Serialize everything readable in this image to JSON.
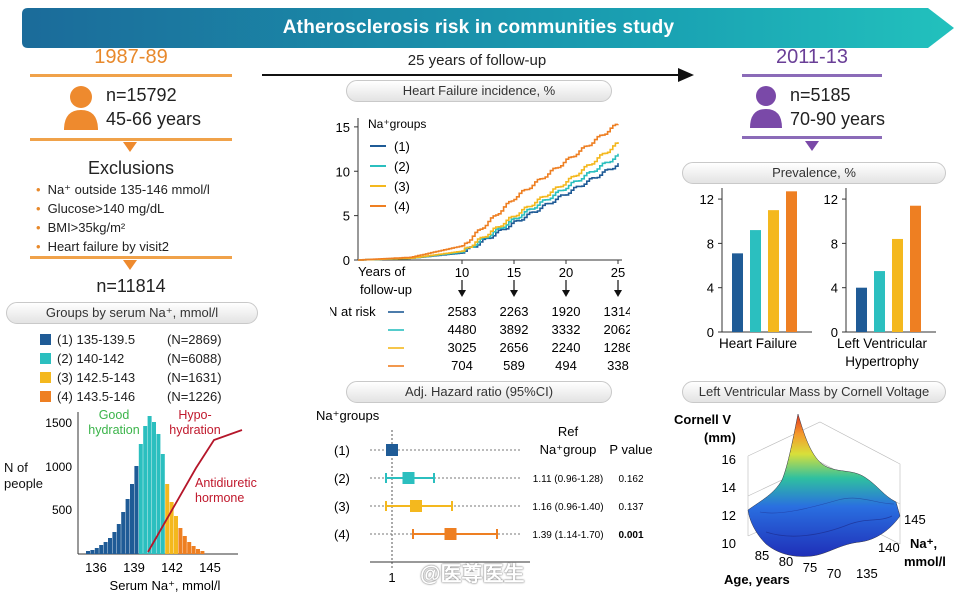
{
  "banner": {
    "title": "Atherosclerosis risk in communities study"
  },
  "baseline": {
    "period": "1987-89",
    "n": "n=15792",
    "ages": "45-66 years"
  },
  "followup": {
    "label": "25 years of follow-up"
  },
  "followup_visit": {
    "period": "2011-13",
    "n": "n=5185",
    "ages": "70-90 years"
  },
  "exclusions": {
    "title": "Exclusions",
    "items": [
      "Na⁺ outside 135-146 mmol/l",
      "Glucose>140 mg/dL",
      "BMI>35kg/m²",
      "Heart failure by visit2"
    ],
    "n_after": "n=11814"
  },
  "groups": {
    "title": "Groups by serum Na⁺, mmol/l",
    "rows": [
      {
        "label": "(1) 135-139.5",
        "n": "(N=2869)",
        "color": "#1f5b96"
      },
      {
        "label": "(2) 140-142",
        "n": "(N=6088)",
        "color": "#2bbfbf"
      },
      {
        "label": "(3) 142.5-143",
        "n": "(N=1631)",
        "color": "#f4b81e"
      },
      {
        "label": "(4) 143.5-146",
        "n": "(N=1226)",
        "color": "#ee7f22"
      }
    ]
  },
  "histogram": {
    "ylabel": "N of people",
    "xlabel": "Serum Na⁺, mmol/l",
    "good": "Good hydration",
    "hypo": "Hypo-hydration",
    "adh": "Antidiuretic hormone",
    "yticks": [
      "1500",
      "1000",
      "500"
    ],
    "xticks": [
      "136",
      "139",
      "142",
      "145"
    ]
  },
  "hf_chart": {
    "title": "Heart Failure incidence, %",
    "legend_title": "Na⁺groups",
    "legend": [
      "(1)",
      "(2)",
      "(3)",
      "(4)"
    ],
    "xlabel": "Years of follow-up",
    "risk_label": "N at risk",
    "chart_data": {
      "type": "line",
      "ylim": [
        0,
        16
      ],
      "yticks": [
        "15",
        "10",
        "5",
        "0"
      ],
      "xticks": [
        "10",
        "15",
        "20",
        "25"
      ],
      "x": [
        0,
        5,
        10,
        15,
        20,
        25
      ],
      "series": [
        {
          "name": "(1)",
          "values": [
            0,
            0.2,
            0.8,
            4.2,
            7.5,
            10.8
          ],
          "color": "#1f5b96"
        },
        {
          "name": "(2)",
          "values": [
            0,
            0.2,
            0.9,
            4.6,
            8.2,
            11.8
          ],
          "color": "#2bbfbf"
        },
        {
          "name": "(3)",
          "values": [
            0,
            0.2,
            1.0,
            5.0,
            8.8,
            13.2
          ],
          "color": "#f4b81e"
        },
        {
          "name": "(4)",
          "values": [
            0,
            0.3,
            1.6,
            7.0,
            11.2,
            15.4
          ],
          "color": "#ee7f22"
        }
      ]
    },
    "at_risk": [
      [
        "2583",
        "2263",
        "1920",
        "1314"
      ],
      [
        "4480",
        "3892",
        "3332",
        "2062"
      ],
      [
        "3025",
        "2656",
        "2240",
        "1286"
      ],
      [
        "704",
        "589",
        "494",
        "338"
      ]
    ]
  },
  "hr_chart": {
    "title": "Adj. Hazard ratio (95%CI)",
    "legend_title": "Na⁺groups",
    "ref_label": "Ref",
    "col1_header": "Na⁺group",
    "col2_header": "P value",
    "xtick": "1",
    "chart_data": {
      "type": "forest",
      "rows": [
        {
          "group": "(1)",
          "hr": 1.0,
          "lo": 1.0,
          "hi": 1.0,
          "ci_text": "",
          "p": "",
          "color": "#1f5b96"
        },
        {
          "group": "(2)",
          "hr": 1.11,
          "lo": 0.96,
          "hi": 1.28,
          "ci_text": "1.11 (0.96-1.28)",
          "p": "0.162",
          "color": "#2bbfbf"
        },
        {
          "group": "(3)",
          "hr": 1.16,
          "lo": 0.96,
          "hi": 1.4,
          "ci_text": "1.16 (0.96-1.40)",
          "p": "0.137",
          "color": "#f4b81e"
        },
        {
          "group": "(4)",
          "hr": 1.39,
          "lo": 1.14,
          "hi": 1.7,
          "ci_text": "1.39 (1.14-1.70)",
          "p": "0.001",
          "color": "#ee7f22"
        }
      ]
    }
  },
  "prevalence": {
    "title": "Prevalence, %",
    "chart_data": [
      {
        "type": "bar",
        "title": "Heart Failure",
        "categories": [
          "(1)",
          "(2)",
          "(3)",
          "(4)"
        ],
        "values": [
          7.1,
          9.2,
          11.0,
          12.7
        ],
        "ylim": [
          0,
          13
        ],
        "yticks": [
          "12",
          "8",
          "4",
          "0"
        ]
      },
      {
        "type": "bar",
        "title": "Left Ventricular Hypertrophy",
        "categories": [
          "(1)",
          "(2)",
          "(3)",
          "(4)"
        ],
        "values": [
          4.0,
          5.5,
          8.4,
          11.4
        ],
        "ylim": [
          0,
          13
        ],
        "yticks": [
          "12",
          "8",
          "4",
          "0"
        ]
      }
    ],
    "hf_label": "Heart Failure",
    "lvh_label_1": "Left Ventricular",
    "lvh_label_2": "Hypertrophy",
    "colors": [
      "#1f5b96",
      "#2bbfbf",
      "#f4b81e",
      "#ee7f22"
    ]
  },
  "lv_mass": {
    "title": "Left Ventricular Mass by Cornell Voltage",
    "zlabel_1": "Cornell V",
    "zlabel_2": "(mm)",
    "zticks": [
      "16",
      "14",
      "12",
      "10"
    ],
    "age_ticks": [
      "85",
      "80",
      "75",
      "70"
    ],
    "age_label": "Age, years",
    "na_ticks": [
      "145",
      "140",
      "135"
    ],
    "na_label_1": "Na⁺,",
    "na_label_2": "mmol/l"
  },
  "watermark": "@医尊医生"
}
